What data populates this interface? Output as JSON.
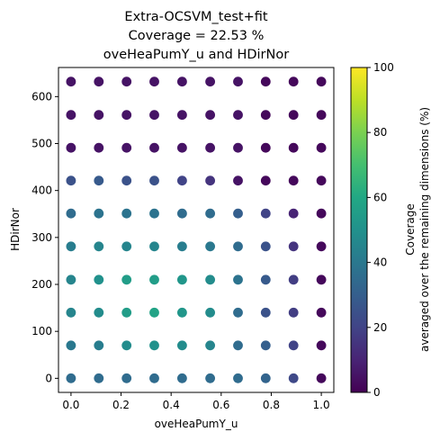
{
  "chart_data": {
    "type": "scatter",
    "title_lines": [
      "Extra-OCSVM_test+fit",
      "Coverage = 22.53 %",
      "oveHeaPumY_u and HDirNor"
    ],
    "xlabel": "oveHeaPumY_u",
    "ylabel": "HDirNor",
    "xlim": [
      -0.05,
      1.05
    ],
    "ylim": [
      -30,
      662
    ],
    "x_ticks": [
      0.0,
      0.2,
      0.4,
      0.6,
      0.8,
      1.0
    ],
    "x_tick_labels": [
      "0.0",
      "0.2",
      "0.4",
      "0.6",
      "0.8",
      "1.0"
    ],
    "y_ticks": [
      0,
      100,
      200,
      300,
      400,
      500,
      600
    ],
    "y_tick_labels": [
      "0",
      "100",
      "200",
      "300",
      "400",
      "500",
      "600"
    ],
    "x": [
      0.0,
      0.111,
      0.222,
      0.333,
      0.444,
      0.556,
      0.667,
      0.778,
      0.889,
      1.0
    ],
    "y": [
      0,
      70,
      140,
      210,
      281,
      351,
      421,
      491,
      561,
      632
    ],
    "coverage_percent": [
      [
        35,
        35,
        35,
        35,
        35,
        35,
        35,
        32,
        22,
        2
      ],
      [
        40,
        42,
        48,
        50,
        48,
        45,
        35,
        30,
        20,
        2
      ],
      [
        45,
        48,
        55,
        58,
        52,
        48,
        35,
        25,
        18,
        2
      ],
      [
        45,
        50,
        55,
        55,
        52,
        48,
        38,
        28,
        18,
        2
      ],
      [
        42,
        45,
        45,
        45,
        42,
        40,
        35,
        25,
        15,
        2
      ],
      [
        35,
        38,
        38,
        38,
        35,
        35,
        30,
        20,
        10,
        2
      ],
      [
        25,
        28,
        25,
        25,
        20,
        15,
        5,
        2,
        2,
        2
      ],
      [
        5,
        5,
        5,
        5,
        5,
        5,
        5,
        2,
        2,
        2
      ],
      [
        5,
        5,
        5,
        5,
        5,
        5,
        5,
        2,
        2,
        2
      ],
      [
        5,
        5,
        5,
        5,
        5,
        5,
        5,
        2,
        2,
        2
      ]
    ],
    "colorbar": {
      "colormap": "viridis",
      "range": [
        0,
        100
      ],
      "ticks": [
        0,
        20,
        40,
        60,
        80,
        100
      ],
      "tick_labels": [
        "0",
        "20",
        "40",
        "60",
        "80",
        "100"
      ],
      "label_lines": [
        "Coverage",
        "averaged over the remaining dimensions (%)"
      ]
    }
  }
}
